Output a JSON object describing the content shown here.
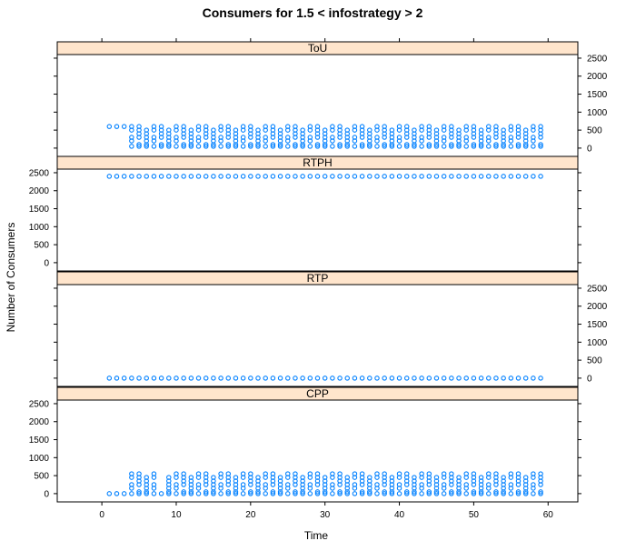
{
  "chart_data": {
    "type": "scatter",
    "title": "Consumers for 1.5 < infostrategy > 2",
    "xlabel": "Time",
    "ylabel": "Number of Consumers",
    "xlim": [
      -6,
      64
    ],
    "ylim": [
      -230,
      2600
    ],
    "x_ticks": [
      0,
      10,
      20,
      30,
      40,
      50,
      60
    ],
    "y_ticks": [
      0,
      500,
      1000,
      1500,
      2000,
      2500
    ],
    "colors": {
      "points": "#0080ff",
      "strip": "#ffe5cc",
      "frame": "#000000"
    },
    "grid": false,
    "legend": "none",
    "panels": [
      {
        "name": "ToU",
        "pattern": "cyclic",
        "start_value": 600,
        "series_values": [
          600,
          500,
          400,
          300,
          200,
          100,
          50
        ]
      },
      {
        "name": "RTPH",
        "pattern": "constant",
        "value": 2400
      },
      {
        "name": "RTP",
        "pattern": "constant",
        "value": 0
      },
      {
        "name": "CPP",
        "pattern": "cyclic",
        "start_value": 0,
        "series_values": [
          550,
          450,
          350,
          250,
          150,
          50,
          0
        ]
      }
    ],
    "time_range": [
      1,
      59
    ]
  }
}
